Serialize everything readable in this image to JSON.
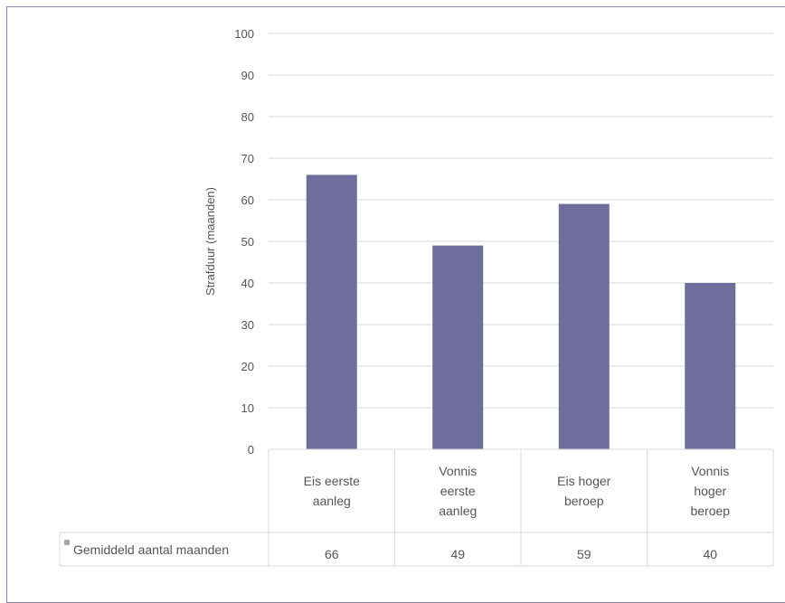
{
  "chart_data": {
    "type": "bar",
    "ylabel": "Strafduur (maanden)",
    "ylim": [
      0,
      100
    ],
    "yticks": [
      "0",
      "10",
      "20",
      "30",
      "40",
      "50",
      "60",
      "70",
      "80",
      "90",
      "100"
    ],
    "categories": [
      [
        "Eis eerste",
        "aanleg"
      ],
      [
        "Vonnis",
        "eerste",
        "aanleg"
      ],
      [
        "Eis hoger",
        "beroep"
      ],
      [
        "Vonnis",
        "hoger",
        "beroep"
      ]
    ],
    "series": [
      {
        "name": "Gemiddeld aantal maanden",
        "values": [
          66,
          49,
          59,
          40
        ],
        "color": "#6e6d9b"
      }
    ],
    "grid": true,
    "legend": "data-table-row"
  }
}
